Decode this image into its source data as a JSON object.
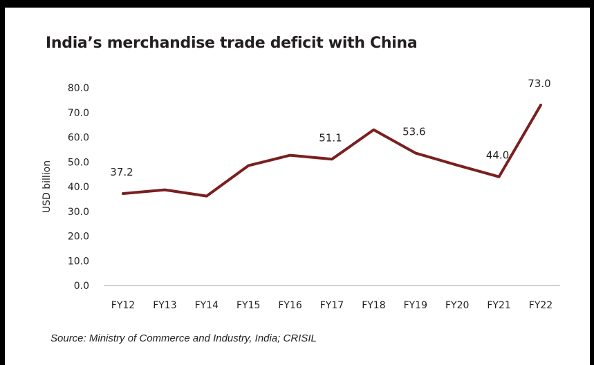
{
  "chart_data": {
    "type": "line",
    "title": "India’s merchandise trade deficit with China",
    "xlabel": "",
    "ylabel": "USD billion",
    "categories": [
      "FY12",
      "FY13",
      "FY14",
      "FY15",
      "FY16",
      "FY17",
      "FY18",
      "FY19",
      "FY20",
      "FY21",
      "FY22"
    ],
    "series": [
      {
        "values": [
          37.2,
          38.7,
          36.2,
          48.5,
          52.7,
          51.1,
          63.0,
          53.6,
          48.7,
          44.0,
          73.0
        ],
        "color": "#7a1f1f"
      }
    ],
    "data_labels": [
      {
        "index": 0,
        "text": "37.2"
      },
      {
        "index": 5,
        "text": "51.1"
      },
      {
        "index": 7,
        "text": "53.6"
      },
      {
        "index": 9,
        "text": "44.0"
      },
      {
        "index": 10,
        "text": "73.0"
      }
    ],
    "yticks": [
      "0.0",
      "10.0",
      "20.0",
      "30.0",
      "40.0",
      "50.0",
      "60.0",
      "70.0",
      "80.0"
    ],
    "ylim": [
      0,
      80
    ],
    "grid": false,
    "legend": "none",
    "source": "Source: Ministry of Commerce and Industry, India; CRISIL"
  }
}
